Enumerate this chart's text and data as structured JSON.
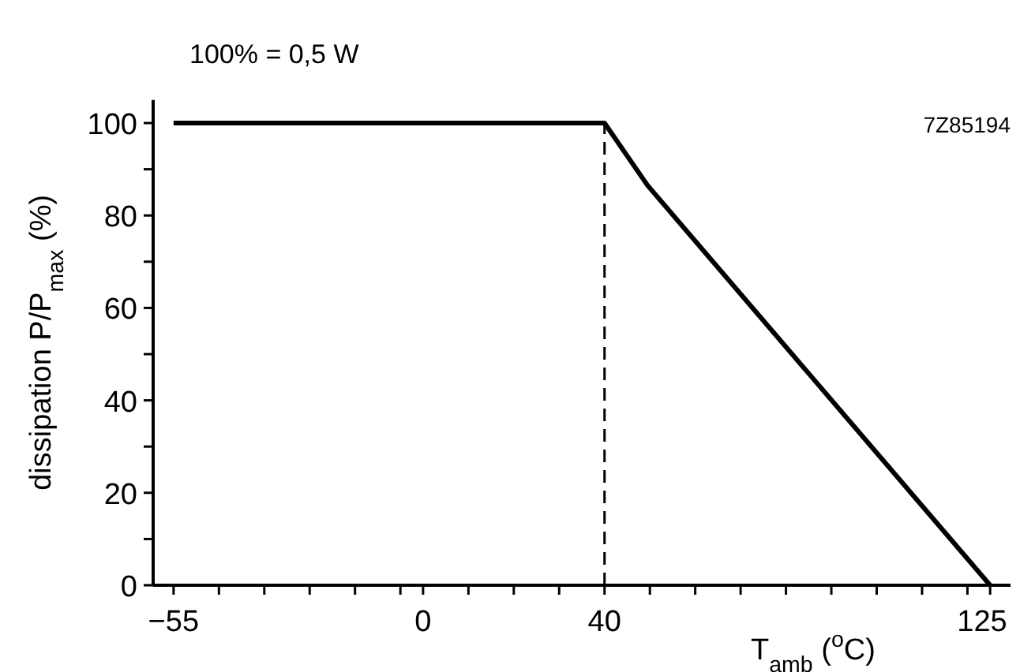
{
  "chart_data": {
    "type": "line",
    "xlabel": "T$_{amb}$ ($^{o}$C)",
    "ylabel": "dissipation P/P$_{max}$ (%)",
    "annotations": [
      "100% = 0,5 W",
      "7Z85194"
    ],
    "x": [
      -55,
      40,
      49.5,
      125
    ],
    "series": [
      {
        "color": "#000000",
        "values": [
          100,
          100,
          86.5,
          0
        ]
      }
    ],
    "xlim": [
      -59.5,
      129.5
    ],
    "ylim": [
      0,
      105
    ],
    "xticks": [
      -55,
      {
        "value": -45,
        "label": null
      },
      {
        "value": -35,
        "label": null
      },
      {
        "value": -25,
        "label": null
      },
      {
        "value": -15,
        "label": null
      },
      {
        "value": -5,
        "label": null
      },
      0,
      {
        "value": 10,
        "label": null
      },
      {
        "value": 20,
        "label": null
      },
      {
        "value": 30,
        "label": null
      },
      40,
      {
        "value": 50,
        "label": null
      },
      {
        "value": 60,
        "label": null
      },
      {
        "value": 70,
        "label": null
      },
      {
        "value": 80,
        "label": null
      },
      {
        "value": 90,
        "label": null
      },
      {
        "value": 100,
        "label": null
      },
      {
        "value": 110,
        "label": null
      },
      {
        "value": 120,
        "label": null
      },
      125
    ],
    "yticks": [
      0,
      {
        "value": 10,
        "label": null
      },
      20,
      {
        "value": 30,
        "label": null
      },
      40,
      {
        "value": 50,
        "label": null
      },
      60,
      {
        "value": 70,
        "label": null
      },
      80,
      {
        "value": 90,
        "label": null
      },
      100
    ],
    "ref_lines": [
      {
        "axis": "x",
        "value": 40,
        "line_style": "dashed"
      }
    ],
    "grid": false,
    "marker": "none",
    "line_style": "solid"
  }
}
